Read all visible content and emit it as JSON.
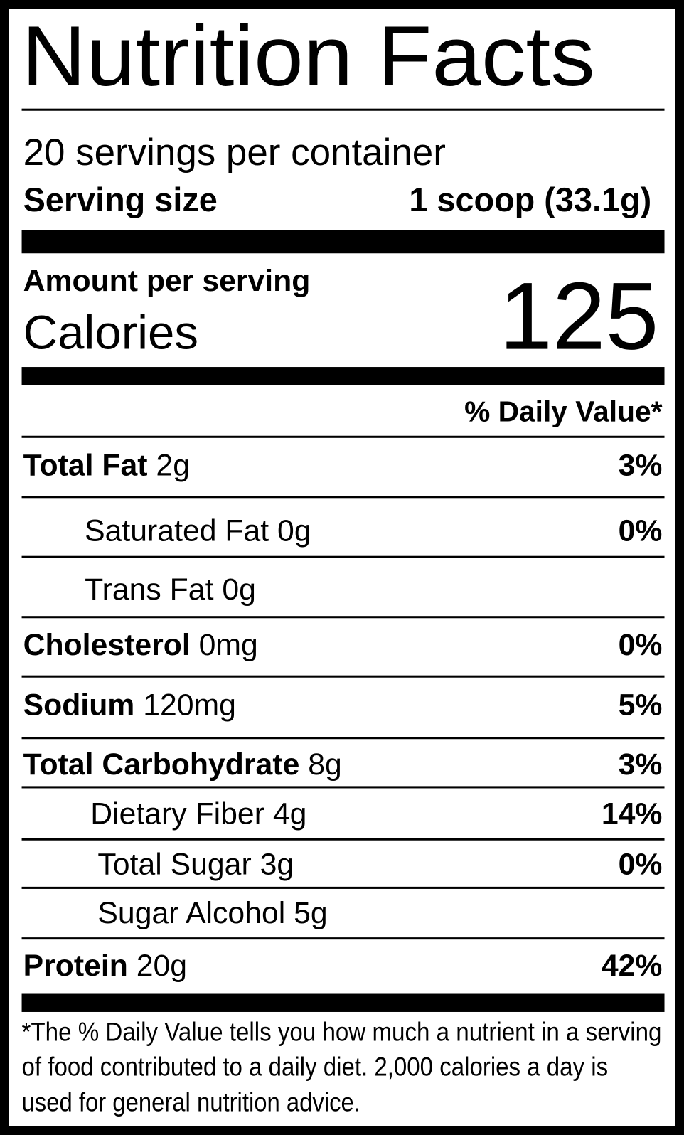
{
  "header": {
    "title": "Nutrition Facts",
    "servings": "20 servings per container",
    "serving_size_label": "Serving size",
    "serving_size_value": "1 scoop (33.1g)"
  },
  "calories": {
    "amount_label": "Amount per serving",
    "label": "Calories",
    "value": 125
  },
  "daily_value_header": "% Daily Value*",
  "rows": [
    {
      "name": "Total Fat",
      "amount": "2g",
      "dv": "3%"
    },
    {
      "name": "Saturated Fat",
      "amount": "0g",
      "dv": "0%"
    },
    {
      "name": "Trans Fat",
      "amount": "0g"
    },
    {
      "name": "Cholesterol",
      "amount": "0mg",
      "dv": "0%"
    },
    {
      "name": "Sodium",
      "amount": "120mg",
      "dv": "5%"
    },
    {
      "name": "Total Carbohydrate",
      "amount": "8g",
      "dv": "3%"
    },
    {
      "name": "Dietary Fiber",
      "amount": "4g",
      "dv": "14%"
    },
    {
      "name": "Total Sugar",
      "amount": "3g",
      "dv": "0%"
    },
    {
      "name": "Sugar Alcohol",
      "amount": "5g"
    },
    {
      "name": "Protein",
      "amount": "20g",
      "dv": "42%"
    }
  ],
  "footnote": [
    "*The % Daily Value tells you how much a nutrient in a serving",
    "of food contributed to a daily diet. 2,000 calories a day is",
    "used for general nutrition advice."
  ]
}
